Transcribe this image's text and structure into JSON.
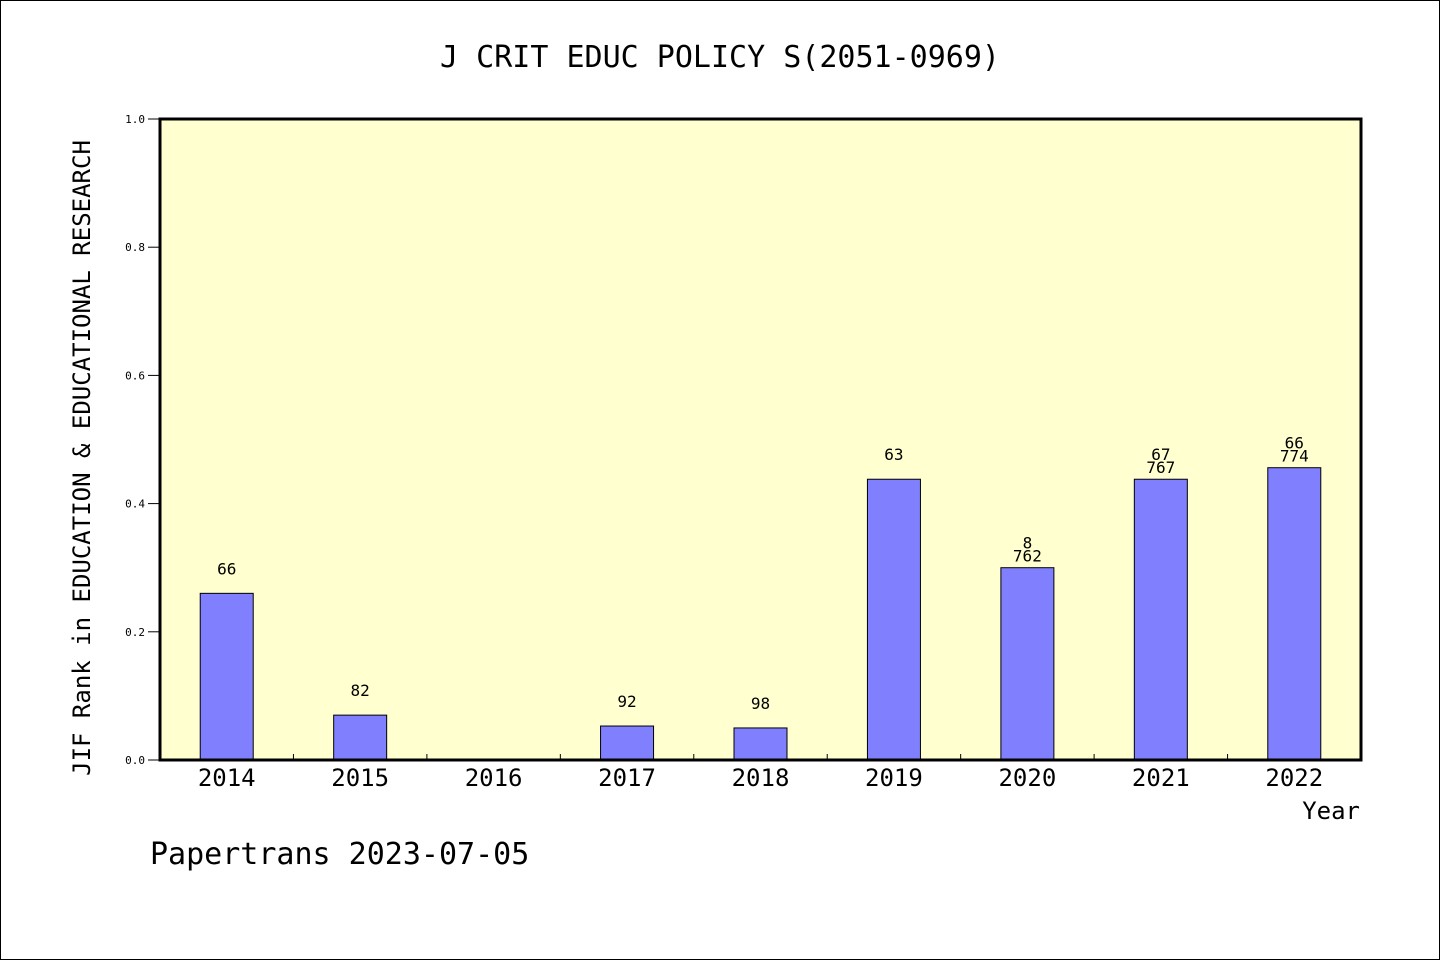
{
  "chart_data": {
    "type": "bar",
    "title": "J CRIT EDUC POLICY S(2051-0969)",
    "ylabel": "JIF Rank in EDUCATION & EDUCATIONAL RESEARCH",
    "xlabel": "Year",
    "ylim": [
      0,
      1.0
    ],
    "yticks": [
      "0.0",
      "0.2",
      "0.4",
      "0.6",
      "0.8",
      "1.0"
    ],
    "categories": [
      "2014",
      "2015",
      "2016",
      "2017",
      "2018",
      "2019",
      "2020",
      "2021",
      "2022"
    ],
    "values": [
      0.26,
      0.07,
      null,
      0.053,
      0.05,
      0.438,
      0.3,
      0.438,
      0.456
    ],
    "labels": [
      [
        "66"
      ],
      [
        "82"
      ],
      [],
      [
        "92"
      ],
      [
        "98"
      ],
      [
        "63"
      ],
      [
        "8",
        "762"
      ],
      [
        "67",
        "767"
      ],
      [
        "66",
        "774"
      ]
    ],
    "grid": false,
    "colors": {
      "plot_background": "#ffffd0",
      "bar": "#8080ff",
      "bar_edge": "#000000"
    }
  },
  "footer": "Papertrans 2023-07-05"
}
